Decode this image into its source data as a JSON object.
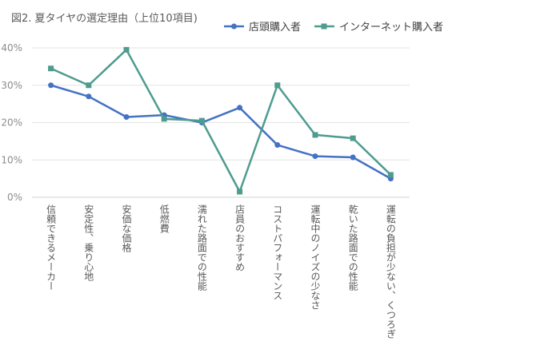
{
  "chart_data": {
    "type": "line",
    "title": "図2. 夏タイヤの選定理由（上位10項目)",
    "categories": [
      "信頼できるメーカー",
      "安定性、乗り心地",
      "安価な価格",
      "低燃費",
      "濡れた路面での性能",
      "店員のおすすめ",
      "コストパフォーマンス",
      "運転中のノイズの少なさ",
      "乾いた路面での性能",
      "運転の負担が少ない、くつろぎ"
    ],
    "series": [
      {
        "name": "店頭購入者",
        "color": "#4472c4",
        "marker": "circle",
        "values": [
          30,
          27,
          21.5,
          22,
          20,
          24,
          14,
          11,
          10.7,
          5
        ]
      },
      {
        "name": "インターネット購入者",
        "color": "#4e9b8f",
        "marker": "square",
        "values": [
          34.5,
          30,
          39.5,
          21,
          20.5,
          1.5,
          30,
          16.7,
          15.8,
          6
        ]
      }
    ],
    "ylim": [
      0,
      40
    ],
    "yticks": [
      "0%",
      "10%",
      "20%",
      "30%",
      "40%"
    ],
    "grid": true,
    "legend_position": "top"
  }
}
